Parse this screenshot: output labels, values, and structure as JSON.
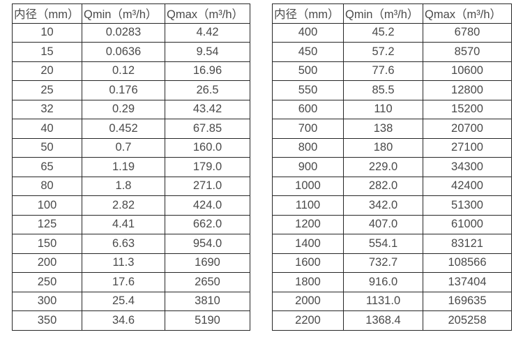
{
  "colors": {
    "background": "#ffffff",
    "text": "#4a4a4a",
    "border": "#262626"
  },
  "tables": [
    {
      "name": "flow-rate-table-small-diameters",
      "headers": [
        "内径（mm）",
        "Qmin（m³/h）",
        "Qmax（m³/h）"
      ],
      "rows": [
        [
          "10",
          "0.0283",
          "4.42"
        ],
        [
          "15",
          "0.0636",
          "9.54"
        ],
        [
          "20",
          "0.12",
          "16.96"
        ],
        [
          "25",
          "0.176",
          "26.5"
        ],
        [
          "32",
          "0.29",
          "43.42"
        ],
        [
          "40",
          "0.452",
          "67.85"
        ],
        [
          "50",
          "0.7",
          "160.0"
        ],
        [
          "65",
          "1.19",
          "179.0"
        ],
        [
          "80",
          "1.8",
          "271.0"
        ],
        [
          "100",
          "2.82",
          "424.0"
        ],
        [
          "125",
          "4.41",
          "662.0"
        ],
        [
          "150",
          "6.63",
          "954.0"
        ],
        [
          "200",
          "11.3",
          "1690"
        ],
        [
          "250",
          "17.6",
          "2650"
        ],
        [
          "300",
          "25.4",
          "3810"
        ],
        [
          "350",
          "34.6",
          "5190"
        ]
      ]
    },
    {
      "name": "flow-rate-table-large-diameters",
      "headers": [
        "内径（mm）",
        "Qmin（m³/h）",
        "Qmax（m³/h）"
      ],
      "rows": [
        [
          "400",
          "45.2",
          "6780"
        ],
        [
          "450",
          "57.2",
          "8570"
        ],
        [
          "500",
          "77.6",
          "10600"
        ],
        [
          "550",
          "85.5",
          "12800"
        ],
        [
          "600",
          "110",
          "15200"
        ],
        [
          "700",
          "138",
          "20700"
        ],
        [
          "800",
          "180",
          "27100"
        ],
        [
          "900",
          "229.0",
          "34300"
        ],
        [
          "1000",
          "282.0",
          "42400"
        ],
        [
          "1100",
          "342.0",
          "51300"
        ],
        [
          "1200",
          "407.0",
          "61000"
        ],
        [
          "1400",
          "554.1",
          "83121"
        ],
        [
          "1600",
          "732.7",
          "108566"
        ],
        [
          "1800",
          "916.0",
          "137404"
        ],
        [
          "2000",
          "1131.0",
          "169635"
        ],
        [
          "2200",
          "1368.4",
          "205258"
        ]
      ]
    }
  ]
}
